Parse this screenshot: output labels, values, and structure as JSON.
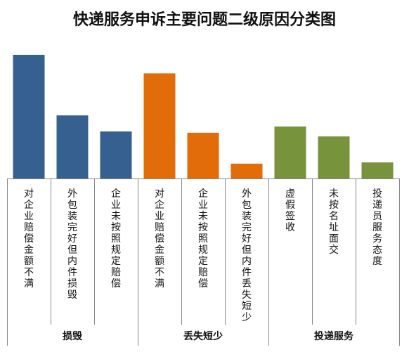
{
  "chart_data": {
    "type": "bar",
    "title": "快递服务申诉主要问题二级原因分类图",
    "xlabel": "",
    "ylabel": "",
    "axis_values_shown": false,
    "ylim": [
      0,
      100
    ],
    "grid": false,
    "legend": "none",
    "groups": [
      {
        "name": "损毁",
        "color": "#35608F",
        "categories": [
          "对企业赔偿金额不满",
          "外包装完好但内件损毁",
          "企业未按照规定赔偿"
        ],
        "values": [
          100,
          51,
          38
        ]
      },
      {
        "name": "丢失短少",
        "color": "#E36C0A",
        "categories": [
          "对企业赔偿金额不满",
          "企业未按照规定赔偿",
          "外包装完好但内件丢失短少"
        ],
        "values": [
          85,
          37,
          12
        ]
      },
      {
        "name": "投递服务",
        "color": "#77933C",
        "categories": [
          "虚假签收",
          "未按名址面交",
          "投递员服务态度"
        ],
        "values": [
          42,
          34,
          13
        ]
      }
    ]
  }
}
